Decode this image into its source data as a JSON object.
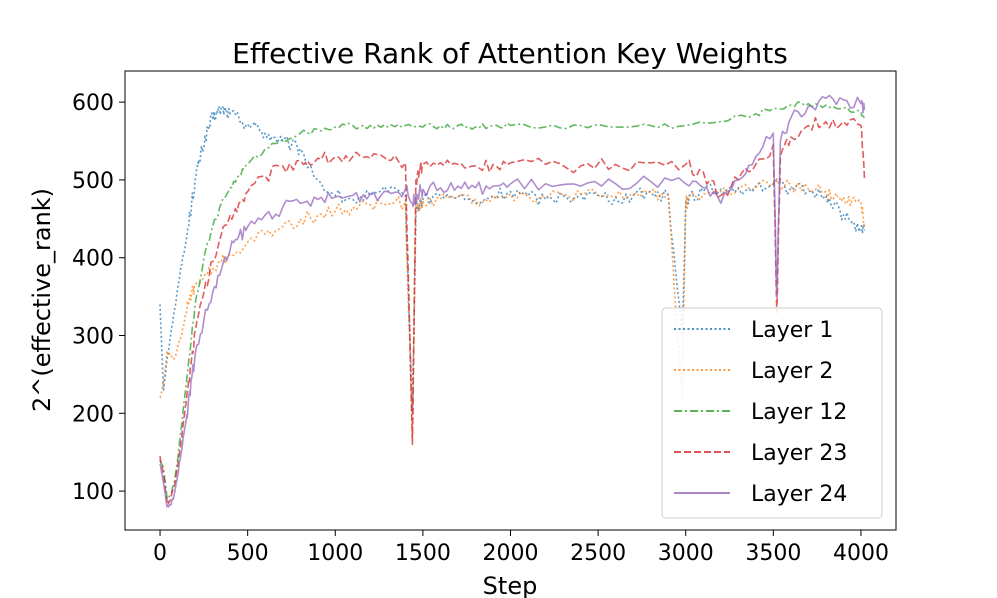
{
  "chart_data": {
    "type": "line",
    "title": "Effective Rank of Attention Key Weights",
    "xlabel": "Step",
    "ylabel": "2^(effective_rank)",
    "xlim": [
      -200,
      4200
    ],
    "ylim": [
      50,
      640
    ],
    "xticks": [
      0,
      500,
      1000,
      1500,
      2000,
      2500,
      3000,
      3500,
      4000
    ],
    "yticks": [
      100,
      200,
      300,
      400,
      500,
      600
    ],
    "legend_position": "lower right",
    "series": [
      {
        "name": "Layer 1",
        "label": "Layer 1",
        "color": "#1f77b4",
        "style": "dotted",
        "x": [
          0,
          20,
          40,
          60,
          80,
          100,
          120,
          140,
          160,
          180,
          200,
          220,
          240,
          260,
          280,
          300,
          320,
          340,
          360,
          380,
          400,
          450,
          500,
          550,
          600,
          650,
          700,
          750,
          800,
          900,
          1000,
          1100,
          1200,
          1300,
          1400,
          1440,
          1460,
          1480,
          1500,
          1600,
          1700,
          1800,
          1900,
          2000,
          2100,
          2200,
          2300,
          2400,
          2500,
          2600,
          2700,
          2800,
          2900,
          2980,
          3000,
          3020,
          3100,
          3200,
          3300,
          3400,
          3500,
          3600,
          3700,
          3800,
          3850,
          3900,
          3950,
          4000,
          4020
        ],
        "values": [
          340,
          230,
          270,
          300,
          330,
          360,
          390,
          410,
          440,
          470,
          500,
          520,
          540,
          555,
          570,
          580,
          585,
          590,
          592,
          588,
          585,
          580,
          572,
          568,
          560,
          555,
          550,
          545,
          540,
          500,
          480,
          475,
          480,
          485,
          480,
          200,
          460,
          470,
          475,
          480,
          478,
          470,
          480,
          485,
          480,
          475,
          480,
          482,
          480,
          478,
          480,
          485,
          480,
          300,
          470,
          480,
          485,
          488,
          490,
          492,
          495,
          490,
          485,
          480,
          470,
          455,
          445,
          440,
          435
        ]
      },
      {
        "name": "Layer 2",
        "label": "Layer 2",
        "color": "#ff7f0e",
        "style": "dotted",
        "x": [
          0,
          20,
          40,
          60,
          80,
          100,
          120,
          140,
          160,
          180,
          200,
          250,
          300,
          350,
          400,
          500,
          600,
          700,
          800,
          900,
          1000,
          1100,
          1200,
          1300,
          1400,
          1440,
          1460,
          1480,
          1500,
          1600,
          1700,
          1800,
          1900,
          2000,
          2100,
          2200,
          2300,
          2400,
          2500,
          2600,
          2700,
          2800,
          2900,
          2980,
          3000,
          3020,
          3100,
          3200,
          3300,
          3400,
          3500,
          3600,
          3700,
          3800,
          3850,
          3900,
          3950,
          4000,
          4020
        ],
        "values": [
          220,
          240,
          280,
          275,
          270,
          285,
          300,
          320,
          340,
          355,
          365,
          375,
          385,
          395,
          405,
          420,
          430,
          440,
          450,
          455,
          460,
          465,
          468,
          470,
          472,
          170,
          465,
          470,
          472,
          475,
          478,
          475,
          480,
          482,
          480,
          478,
          480,
          482,
          480,
          478,
          482,
          485,
          482,
          220,
          470,
          478,
          482,
          485,
          488,
          490,
          495,
          492,
          488,
          485,
          480,
          478,
          475,
          470,
          445
        ]
      },
      {
        "name": "Layer 12",
        "label": "Layer 12",
        "color": "#2ca02c",
        "style": "dashdot",
        "x": [
          0,
          20,
          40,
          60,
          80,
          100,
          120,
          140,
          160,
          180,
          200,
          250,
          300,
          350,
          400,
          450,
          500,
          600,
          700,
          800,
          900,
          1000,
          1100,
          1200,
          1300,
          1400,
          1500,
          1600,
          1700,
          1800,
          1900,
          2000,
          2200,
          2400,
          2600,
          2800,
          3000,
          3200,
          3400,
          3500,
          3600,
          3700,
          3800,
          3900,
          4000,
          4020
        ],
        "values": [
          140,
          130,
          90,
          95,
          110,
          140,
          180,
          220,
          260,
          300,
          340,
          400,
          440,
          470,
          490,
          505,
          520,
          540,
          552,
          560,
          565,
          568,
          570,
          570,
          568,
          570,
          568,
          570,
          570,
          568,
          570,
          570,
          568,
          570,
          568,
          570,
          570,
          575,
          585,
          592,
          596,
          598,
          596,
          592,
          588,
          580
        ]
      },
      {
        "name": "Layer 23",
        "label": "Layer 23",
        "color": "#d62728",
        "style": "dashed",
        "x": [
          0,
          20,
          40,
          60,
          80,
          100,
          120,
          140,
          160,
          180,
          200,
          250,
          300,
          350,
          400,
          450,
          500,
          600,
          700,
          800,
          900,
          1000,
          1100,
          1200,
          1300,
          1400,
          1440,
          1460,
          1480,
          1500,
          1600,
          1700,
          1800,
          1900,
          2000,
          2200,
          2400,
          2600,
          2800,
          3000,
          3100,
          3200,
          3300,
          3400,
          3500,
          3520,
          3540,
          3600,
          3700,
          3800,
          3900,
          4000,
          4020
        ],
        "values": [
          145,
          120,
          85,
          90,
          105,
          130,
          165,
          200,
          235,
          270,
          305,
          355,
          395,
          430,
          455,
          470,
          485,
          505,
          518,
          525,
          528,
          530,
          530,
          528,
          525,
          522,
          160,
          500,
          515,
          520,
          522,
          520,
          518,
          520,
          522,
          520,
          518,
          520,
          522,
          520,
          510,
          480,
          500,
          520,
          545,
          330,
          530,
          555,
          570,
          575,
          575,
          570,
          500
        ]
      },
      {
        "name": "Layer 24",
        "label": "Layer 24",
        "color": "#9467bd",
        "style": "solid",
        "x": [
          0,
          20,
          40,
          60,
          80,
          100,
          120,
          140,
          160,
          180,
          200,
          250,
          300,
          350,
          400,
          450,
          500,
          600,
          700,
          800,
          900,
          1000,
          1100,
          1200,
          1300,
          1400,
          1440,
          1460,
          1480,
          1500,
          1600,
          1700,
          1800,
          1900,
          2000,
          2200,
          2400,
          2600,
          2800,
          3000,
          3100,
          3200,
          3300,
          3400,
          3500,
          3520,
          3540,
          3600,
          3700,
          3800,
          3900,
          4000,
          4020
        ],
        "values": [
          135,
          110,
          80,
          82,
          95,
          120,
          150,
          180,
          210,
          245,
          275,
          320,
          355,
          385,
          410,
          428,
          440,
          455,
          465,
          470,
          475,
          478,
          480,
          482,
          485,
          488,
          470,
          480,
          485,
          488,
          490,
          492,
          490,
          492,
          495,
          495,
          492,
          495,
          498,
          495,
          490,
          470,
          500,
          530,
          560,
          350,
          550,
          580,
          595,
          605,
          603,
          598,
          590
        ]
      }
    ]
  }
}
